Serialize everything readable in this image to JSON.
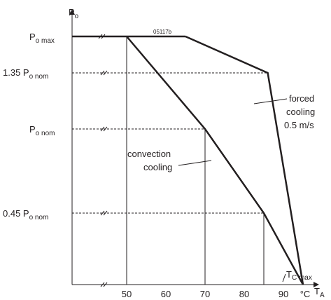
{
  "chart_data": {
    "type": "line",
    "figure_code": "05117b",
    "y_axis": {
      "label_main": "P",
      "label_sub": "o",
      "levels": [
        {
          "key": "max",
          "main": "P",
          "sub": "o max",
          "prefix": ""
        },
        {
          "key": "p135",
          "main": "P",
          "sub": "o nom",
          "prefix": "1.35"
        },
        {
          "key": "nom",
          "main": "P",
          "sub": "o nom",
          "prefix": ""
        },
        {
          "key": "p045",
          "main": "P",
          "sub": "o nom",
          "prefix": "0.45"
        }
      ]
    },
    "x_axis": {
      "label_main": "T",
      "label_sub": "A",
      "unit": "°C",
      "ticks": [
        50,
        60,
        70,
        80,
        90
      ],
      "range": [
        35,
        95
      ],
      "tc_max_main": "T",
      "tc_max_sub": "C max"
    },
    "series": [
      {
        "key": "convection",
        "label_lines": [
          "convection",
          "cooling"
        ],
        "points": [
          [
            50,
            1.58
          ],
          [
            70,
            1.0
          ],
          [
            85,
            0.45
          ],
          [
            95,
            0
          ]
        ]
      },
      {
        "key": "forced",
        "label_lines": [
          "forced",
          "cooling",
          "0.5 m/s"
        ],
        "points": [
          [
            35,
            1.58
          ],
          [
            65,
            1.58
          ],
          [
            86,
            1.35
          ],
          [
            95,
            0
          ]
        ]
      }
    ],
    "guides": [
      {
        "from": [
          35,
          1.35
        ],
        "to": [
          86,
          1.35
        ]
      },
      {
        "from": [
          35,
          1.0
        ],
        "to": [
          70,
          1.0
        ]
      },
      {
        "from": [
          35,
          0.45
        ],
        "to": [
          85,
          0.45
        ]
      }
    ],
    "drops": [
      50,
      70,
      85
    ]
  }
}
